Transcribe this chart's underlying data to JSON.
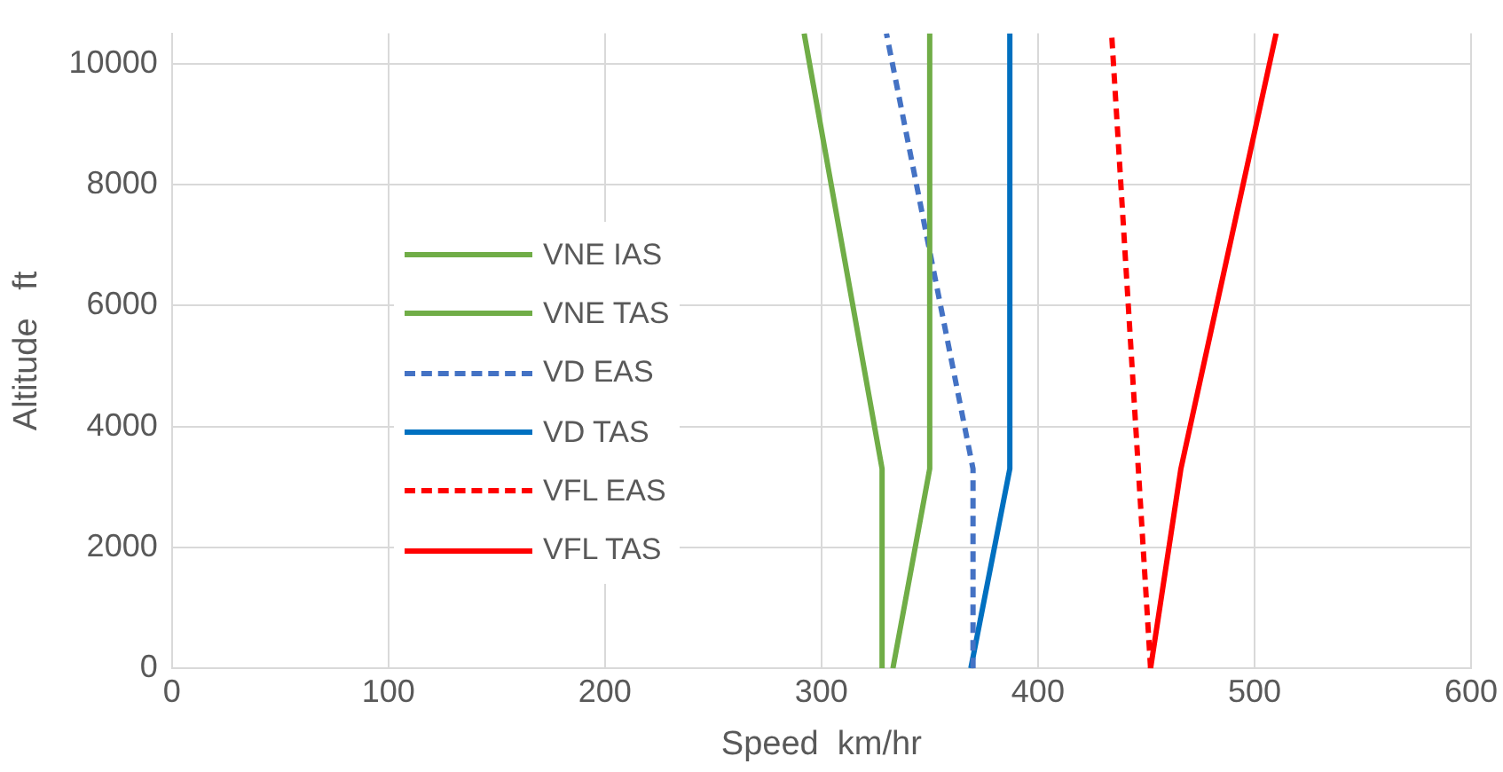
{
  "chart_data": {
    "type": "line",
    "xlabel": "Speed  km/hr",
    "ylabel": "Altitude   ft",
    "xlim": [
      0,
      600
    ],
    "xticks": [
      0,
      100,
      200,
      300,
      400,
      500,
      600
    ],
    "ylim": [
      0,
      10500
    ],
    "yticks": [
      0,
      2000,
      4000,
      6000,
      8000,
      10000
    ],
    "grid": true,
    "legend": "left",
    "series": [
      {
        "name": "VNE IAS",
        "color": "#70ad47",
        "line_style": "solid",
        "x": [
          328,
          328,
          292
        ],
        "values": [
          0,
          3300,
          10500
        ]
      },
      {
        "name": "VNE TAS",
        "color": "#70ad47",
        "line_style": "solid",
        "x": [
          333,
          350,
          350
        ],
        "values": [
          0,
          3300,
          10500
        ]
      },
      {
        "name": "VD EAS",
        "color": "#4472c4",
        "line_style": "dashed",
        "x": [
          370,
          370,
          330
        ],
        "values": [
          0,
          3300,
          10500
        ]
      },
      {
        "name": "VD TAS",
        "color": "#0070c0",
        "line_style": "solid",
        "x": [
          369,
          387,
          387
        ],
        "values": [
          0,
          3300,
          10500
        ]
      },
      {
        "name": "VFL EAS",
        "color": "#ff0000",
        "line_style": "dashed",
        "x": [
          452,
          434
        ],
        "values": [
          0,
          10500
        ]
      },
      {
        "name": "VFL TAS",
        "color": "#ff0000",
        "line_style": "solid",
        "x": [
          452,
          466,
          510
        ],
        "values": [
          0,
          3300,
          10500
        ]
      }
    ]
  }
}
